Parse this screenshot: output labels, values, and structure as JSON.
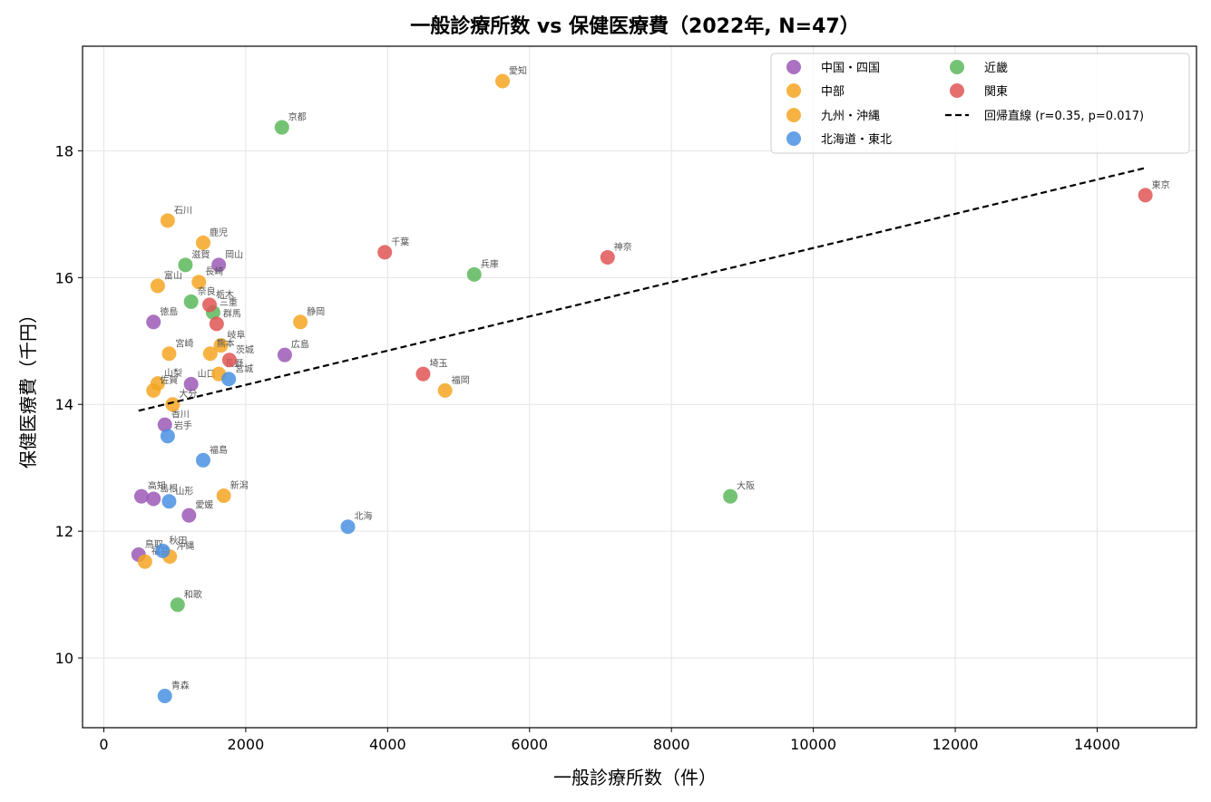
{
  "chart_data": {
    "type": "scatter",
    "title": "一般診療所数 vs 保健医療費（2022年, N=47）",
    "xlabel": "一般診療所数（件）",
    "ylabel": "保健医療費（千円）",
    "xlim": [
      -300,
      15400
    ],
    "ylim": [
      8.9,
      19.65
    ],
    "xticks": [
      0,
      2000,
      4000,
      6000,
      8000,
      10000,
      12000,
      14000
    ],
    "yticks": [
      10,
      12,
      14,
      16,
      18
    ],
    "grid": true,
    "legend_position": "top-right",
    "series": [
      {
        "name": "中国・四国",
        "color": "#9b59b6",
        "points": [
          {
            "label": "岡山",
            "x": 1620,
            "y": 16.2
          },
          {
            "label": "徳島",
            "x": 700,
            "y": 15.3
          },
          {
            "label": "広島",
            "x": 2550,
            "y": 14.78
          },
          {
            "label": "山口",
            "x": 1230,
            "y": 14.32
          },
          {
            "label": "香川",
            "x": 860,
            "y": 13.68
          },
          {
            "label": "高知",
            "x": 530,
            "y": 12.55
          },
          {
            "label": "島根",
            "x": 700,
            "y": 12.51
          },
          {
            "label": "愛媛",
            "x": 1200,
            "y": 12.25
          },
          {
            "label": "鳥取",
            "x": 490,
            "y": 11.63
          }
        ]
      },
      {
        "name": "中部",
        "color": "#f5a623",
        "points": [
          {
            "label": "愛知",
            "x": 5620,
            "y": 19.1
          },
          {
            "label": "石川",
            "x": 900,
            "y": 16.9
          },
          {
            "label": "富山",
            "x": 760,
            "y": 15.87
          },
          {
            "label": "静岡",
            "x": 2770,
            "y": 15.3
          },
          {
            "label": "岐阜",
            "x": 1650,
            "y": 14.93
          },
          {
            "label": "山梨",
            "x": 760,
            "y": 14.33
          },
          {
            "label": "長野",
            "x": 1620,
            "y": 14.48
          },
          {
            "label": "新潟",
            "x": 1690,
            "y": 12.56
          },
          {
            "label": "福井",
            "x": 580,
            "y": 11.52
          }
        ]
      },
      {
        "name": "九州・沖縄",
        "color": "#f5a623",
        "points": [
          {
            "label": "鹿児",
            "x": 1400,
            "y": 16.55
          },
          {
            "label": "長崎",
            "x": 1340,
            "y": 15.93
          },
          {
            "label": "宮崎",
            "x": 920,
            "y": 14.8
          },
          {
            "label": "熊本",
            "x": 1500,
            "y": 14.8
          },
          {
            "label": "佐賀",
            "x": 700,
            "y": 14.22
          },
          {
            "label": "大分",
            "x": 970,
            "y": 14.0
          },
          {
            "label": "福岡",
            "x": 4810,
            "y": 14.22
          },
          {
            "label": "沖縄",
            "x": 930,
            "y": 11.6
          }
        ]
      },
      {
        "name": "北海道・東北",
        "color": "#4a90e2",
        "points": [
          {
            "label": "宮城",
            "x": 1760,
            "y": 14.4
          },
          {
            "label": "岩手",
            "x": 900,
            "y": 13.5
          },
          {
            "label": "福島",
            "x": 1400,
            "y": 13.12
          },
          {
            "label": "山形",
            "x": 920,
            "y": 12.47
          },
          {
            "label": "北海",
            "x": 3440,
            "y": 12.07
          },
          {
            "label": "秋田",
            "x": 830,
            "y": 11.69
          },
          {
            "label": "青森",
            "x": 860,
            "y": 9.4
          }
        ]
      },
      {
        "name": "近畿",
        "color": "#5cb85c",
        "points": [
          {
            "label": "京都",
            "x": 2510,
            "y": 18.37
          },
          {
            "label": "滋賀",
            "x": 1150,
            "y": 16.2
          },
          {
            "label": "兵庫",
            "x": 5220,
            "y": 16.05
          },
          {
            "label": "奈良",
            "x": 1230,
            "y": 15.62
          },
          {
            "label": "三重",
            "x": 1540,
            "y": 15.45
          },
          {
            "label": "大阪",
            "x": 8830,
            "y": 12.55
          },
          {
            "label": "和歌",
            "x": 1040,
            "y": 10.84
          }
        ]
      },
      {
        "name": "関東",
        "color": "#e05555",
        "points": [
          {
            "label": "東京",
            "x": 14680,
            "y": 17.3
          },
          {
            "label": "神奈",
            "x": 7100,
            "y": 16.32
          },
          {
            "label": "千葉",
            "x": 3960,
            "y": 16.4
          },
          {
            "label": "栃木",
            "x": 1490,
            "y": 15.57
          },
          {
            "label": "群馬",
            "x": 1590,
            "y": 15.27
          },
          {
            "label": "茨城",
            "x": 1770,
            "y": 14.7
          },
          {
            "label": "埼玉",
            "x": 4500,
            "y": 14.48
          }
        ]
      }
    ],
    "regression": {
      "name": "回帰直線 (r=0.35, p=0.017)",
      "x": [
        490,
        14680
      ],
      "y": [
        13.9,
        17.73
      ]
    }
  }
}
